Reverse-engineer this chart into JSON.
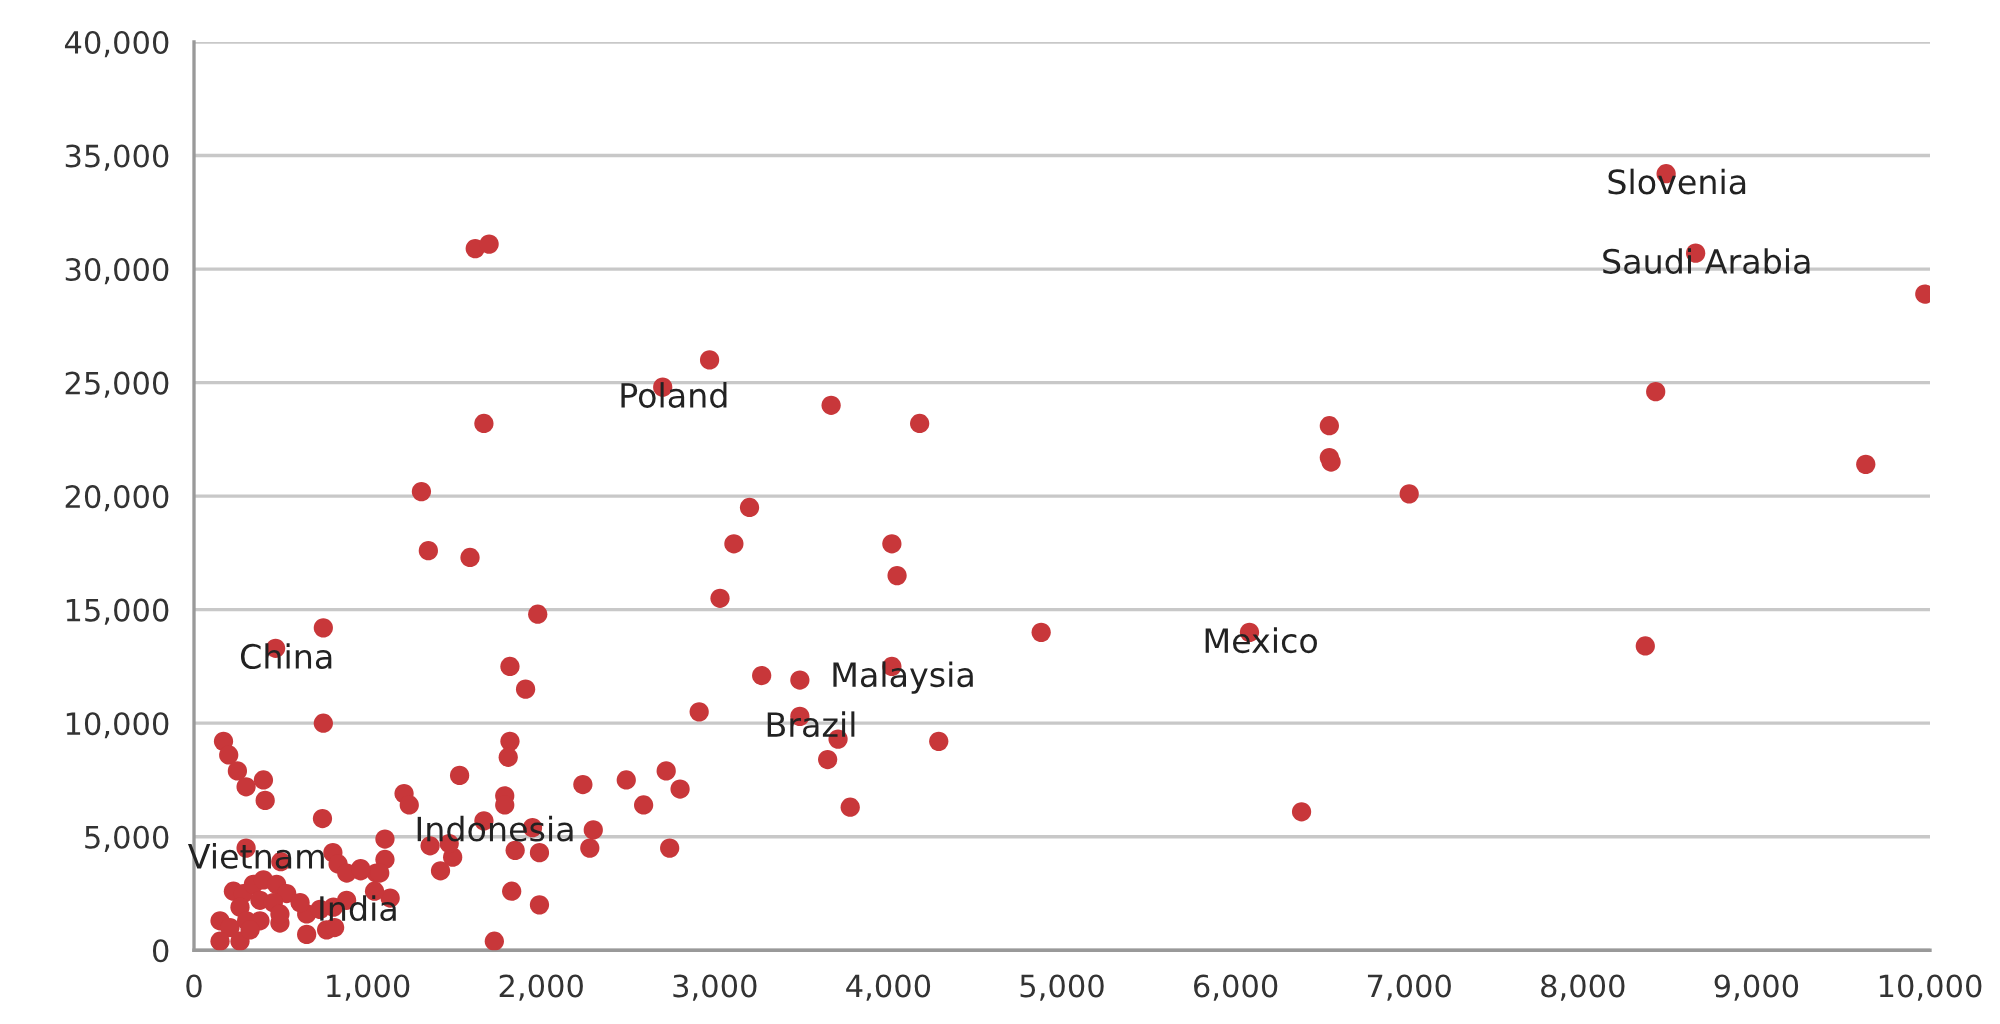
{
  "chart_data": {
    "type": "scatter",
    "marker": "circle",
    "grid": "y",
    "xlim": [
      0,
      10000
    ],
    "ylim": [
      0,
      40000
    ],
    "xticks": [
      0,
      {
        "value": 1000,
        "label": "1,000"
      },
      {
        "value": 2000,
        "label": "2,000"
      },
      {
        "value": 3000,
        "label": "3,000"
      },
      {
        "value": 4000,
        "label": "4,000"
      },
      {
        "value": 5000,
        "label": "5,000"
      },
      {
        "value": 6000,
        "label": "6,000"
      },
      {
        "value": 7000,
        "label": "7,000"
      },
      {
        "value": 8000,
        "label": "8,000"
      },
      {
        "value": 9000,
        "label": "9,000"
      },
      {
        "value": 10000,
        "label": "10,000"
      }
    ],
    "yticks": [
      0,
      {
        "value": 5000,
        "label": "5,000"
      },
      {
        "value": 10000,
        "label": "10,000"
      },
      {
        "value": 15000,
        "label": "15,000"
      },
      {
        "value": 20000,
        "label": "20,000"
      },
      {
        "value": 25000,
        "label": "25,000"
      },
      {
        "value": 30000,
        "label": "30,000"
      },
      {
        "value": 35000,
        "label": "35,000"
      },
      {
        "value": 40000,
        "label": "40,000"
      }
    ],
    "series": [
      {
        "color": "#c8373a",
        "x": [
          8480,
          8650,
          9970,
          8420,
          9630,
          7000,
          6540,
          6540,
          6550,
          6080,
          6380,
          8360,
          2970,
          2700,
          3670,
          4180,
          3200,
          3110,
          3030,
          4020,
          4050,
          4880,
          3270,
          3490,
          4020,
          2910,
          3490,
          3710,
          3650,
          4290,
          3780,
          2240,
          2490,
          2720,
          2800,
          2590,
          2300,
          2280,
          2740,
          1620,
          1700,
          1670,
          1310,
          1350,
          1590,
          1980,
          745,
          1820,
          1910,
          745,
          1820,
          1810,
          1530,
          1210,
          1240,
          1790,
          1790,
          1950,
          1990,
          1850,
          1360,
          1490,
          1420,
          1100,
          1100,
          1050,
          960,
          1130,
          1830,
          1990,
          1730,
          470,
          170,
          200,
          250,
          300,
          400,
          410,
          740,
          1670,
          1470,
          300,
          800,
          830,
          880,
          500,
          960,
          1070,
          1040,
          227,
          284,
          342,
          400,
          476,
          534,
          380,
          457,
          265,
          150,
          207,
          303,
          380,
          495,
          649,
          726,
          803,
          879,
          611,
          150,
          265,
          649,
          764,
          810,
          495,
          323
        ],
        "values": [
          34200,
          30700,
          28900,
          24600,
          21400,
          20100,
          23100,
          21700,
          21500,
          14000,
          6100,
          13400,
          26000,
          24800,
          24000,
          23200,
          19500,
          17900,
          15500,
          17900,
          16500,
          14000,
          12100,
          11900,
          12500,
          10500,
          10300,
          9300,
          8400,
          9200,
          6300,
          7300,
          7500,
          7900,
          7100,
          6400,
          5300,
          4500,
          4500,
          30900,
          31100,
          23200,
          20200,
          17600,
          17300,
          14800,
          14200,
          12500,
          11500,
          10000,
          9200,
          8500,
          7700,
          6900,
          6400,
          6800,
          6400,
          5400,
          4300,
          4400,
          4600,
          4100,
          3500,
          4900,
          4000,
          3400,
          3500,
          2300,
          2600,
          2000,
          400,
          13300,
          9200,
          8600,
          7900,
          7200,
          7500,
          6600,
          5800,
          5700,
          4700,
          4500,
          4300,
          3800,
          3400,
          3900,
          3600,
          3400,
          2600,
          2600,
          2500,
          2900,
          3100,
          2900,
          2500,
          2200,
          2100,
          1900,
          1300,
          1000,
          1300,
          1300,
          1200,
          1600,
          1800,
          1900,
          2200,
          2100,
          400,
          400,
          700,
          900,
          1000,
          1600,
          900
        ]
      }
    ],
    "annotations": [
      {
        "text": "China",
        "x": 470,
        "y": 13300
      },
      {
        "text": "Vietnam",
        "x": 300,
        "y": 4500
      },
      {
        "text": "India",
        "x": 880,
        "y": 2200
      },
      {
        "text": "Indonesia",
        "x": 1670,
        "y": 5700
      },
      {
        "text": "Poland",
        "x": 2700,
        "y": 24800
      },
      {
        "text": "Brazil",
        "x": 3490,
        "y": 10300
      },
      {
        "text": "Malaysia",
        "x": 4020,
        "y": 12500
      },
      {
        "text": "Mexico",
        "x": 6080,
        "y": 14000
      },
      {
        "text": "Slovenia",
        "x": 8480,
        "y": 34200
      },
      {
        "text": "Saudi Arabia",
        "x": 8650,
        "y": 30700
      }
    ]
  }
}
